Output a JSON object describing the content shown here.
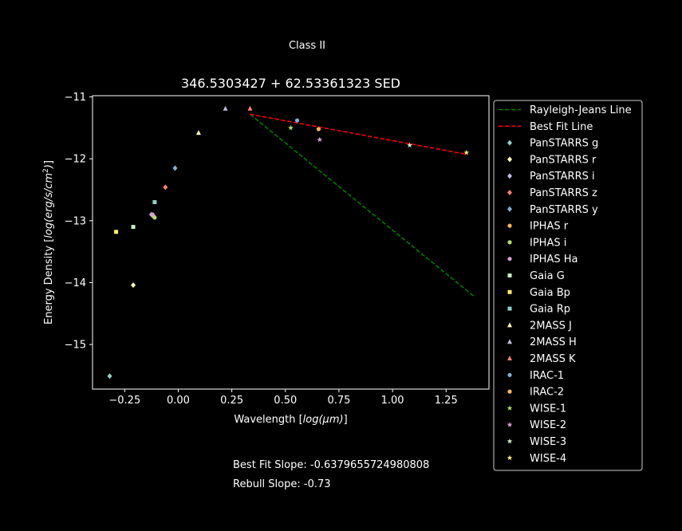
{
  "figure": {
    "suptitle": "Class II",
    "best_fit_text": "Best Fit Slope: -0.6379655724980808",
    "rebull_text": "Rebull Slope: -0.73"
  },
  "chart_data": {
    "type": "scatter",
    "title": "346.5303427 + 62.53361323 SED",
    "xlabel_main": "Wavelength [",
    "xlabel_math": "log(μm)",
    "xlabel_end": "]",
    "ylabel_main": "Energy Density [",
    "ylabel_math": "log(erg/s/cm",
    "ylabel_sup": "2",
    "ylabel_math_end": ")",
    "ylabel_end": "]",
    "xlim": [
      -0.4,
      1.45
    ],
    "ylim": [
      -15.72,
      -10.98
    ],
    "xticks": [
      -0.25,
      0.0,
      0.25,
      0.5,
      0.75,
      1.0,
      1.25
    ],
    "xtick_labels": [
      "−0.25",
      "0.00",
      "0.25",
      "0.50",
      "0.75",
      "1.00",
      "1.25"
    ],
    "yticks": [
      -11,
      -12,
      -13,
      -14,
      -15
    ],
    "ytick_labels": [
      "−11",
      "−12",
      "−13",
      "−14",
      "−15"
    ],
    "legend_position": "outside-right",
    "lines": [
      {
        "name": "Rayleigh-Jeans Line",
        "color": "#008000",
        "dash": "dashed",
        "x": [
          0.335,
          1.38
        ],
        "y": [
          -11.28,
          -14.22
        ]
      },
      {
        "name": "Best Fit Line",
        "color": "#ff0000",
        "dash": "dashed",
        "x": [
          0.335,
          1.35
        ],
        "y": [
          -11.28,
          -11.93
        ]
      }
    ],
    "series": [
      {
        "name": "PanSTARRS g",
        "marker": "diamond",
        "color": "#8dd3c7",
        "x": -0.32,
        "y": -15.51
      },
      {
        "name": "PanSTARRS r",
        "marker": "diamond",
        "color": "#ffffb3",
        "x": -0.21,
        "y": -14.04
      },
      {
        "name": "PanSTARRS i",
        "marker": "diamond",
        "color": "#bebada",
        "x": -0.125,
        "y": -12.9
      },
      {
        "name": "PanSTARRS z",
        "marker": "diamond",
        "color": "#fb8072",
        "x": -0.06,
        "y": -12.46
      },
      {
        "name": "PanSTARRS y",
        "marker": "diamond",
        "color": "#80b1d3",
        "x": -0.015,
        "y": -12.15
      },
      {
        "name": "IPHAS r",
        "marker": "circle",
        "color": "#fdb462",
        "x": -0.115,
        "y": -12.93
      },
      {
        "name": "IPHAS i",
        "marker": "circle",
        "color": "#b3de69",
        "x": -0.11,
        "y": -12.95
      },
      {
        "name": "IPHAS Ha",
        "marker": "circle",
        "color": "#d9a0d4",
        "x": -0.12,
        "y": -12.9
      },
      {
        "name": "Gaia G",
        "marker": "square",
        "color": "#ccebc5",
        "x": -0.21,
        "y": -13.1
      },
      {
        "name": "Gaia Bp",
        "marker": "square",
        "color": "#ffed6f",
        "x": -0.29,
        "y": -13.18
      },
      {
        "name": "Gaia Rp",
        "marker": "square",
        "color": "#8dd3c7",
        "x": -0.11,
        "y": -12.7
      },
      {
        "name": "2MASS J",
        "marker": "triangle",
        "color": "#ffffb3",
        "x": 0.095,
        "y": -11.58
      },
      {
        "name": "2MASS H",
        "marker": "triangle",
        "color": "#bebada",
        "x": 0.22,
        "y": -11.19
      },
      {
        "name": "2MASS K",
        "marker": "triangle",
        "color": "#fb8072",
        "x": 0.335,
        "y": -11.19
      },
      {
        "name": "IRAC-1",
        "marker": "circle",
        "color": "#80b1d3",
        "x": 0.555,
        "y": -11.38
      },
      {
        "name": "IRAC-2",
        "marker": "circle",
        "color": "#fdb462",
        "x": 0.655,
        "y": -11.52
      },
      {
        "name": "WISE-1",
        "marker": "star",
        "color": "#b3de69",
        "x": 0.525,
        "y": -11.5
      },
      {
        "name": "WISE-2",
        "marker": "star",
        "color": "#d9a0d4",
        "x": 0.66,
        "y": -11.69
      },
      {
        "name": "WISE-3",
        "marker": "star",
        "color": "#ccebc5",
        "x": 1.08,
        "y": -11.78
      },
      {
        "name": "WISE-4",
        "marker": "star",
        "color": "#ffed6f",
        "x": 1.345,
        "y": -11.9
      }
    ]
  }
}
